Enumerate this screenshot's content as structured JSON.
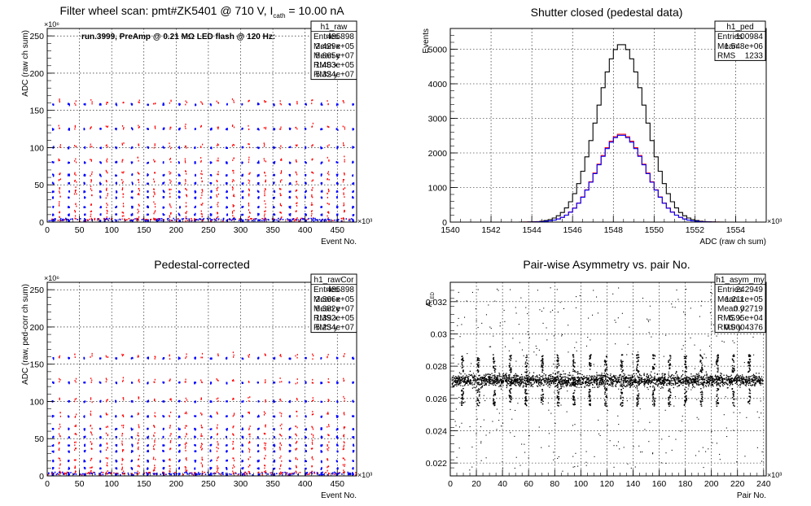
{
  "charts": [
    {
      "id": "raw",
      "chart_data": {
        "type": "scatter",
        "title": "Filter wheel scan: pmt#ZK5401 @   710 V, I",
        "title_sub": "cath",
        "title_tail": " = 10.00 nA",
        "annotation": "run.3999, PreAmp @ 0.21 MΩ LED flash @  120 Hz:",
        "xlabel": "Event No.",
        "ylabel": "ADC (raw ch sum)",
        "x_exponent": "×10³",
        "y_exponent": "×10⁶",
        "xlim": [
          0,
          480
        ],
        "ylim": [
          0,
          260
        ],
        "x_ticks": [
          0,
          50,
          100,
          150,
          200,
          250,
          300,
          350,
          400,
          450
        ],
        "y_ticks": [
          0,
          50,
          100,
          150,
          200,
          250
        ],
        "grid": true,
        "levels": [
          2,
          10,
          20,
          33,
          41,
          52,
          63,
          80,
          100,
          125,
          158
        ],
        "period_kevents": 24.5,
        "series_colors": [
          "#0000ff",
          "#ff0000"
        ],
        "stats": {
          "name": "h1_raw",
          "rows": [
            [
              "Entries",
              "485898"
            ],
            [
              "Mean x",
              "2.429e+05"
            ],
            [
              "Mean y",
              "5.865e+07"
            ],
            [
              "RMS x",
              "1.403e+05"
            ],
            [
              "RMS y",
              "5.324e+07"
            ]
          ]
        }
      }
    },
    {
      "id": "ped",
      "chart_data": {
        "type": "line",
        "title": "Shutter closed (pedestal data)",
        "xlabel": "ADC (raw ch sum)",
        "ylabel": "Events",
        "x_exponent": "×10³",
        "xlim": [
          1540,
          1555.5
        ],
        "ylim": [
          0,
          5600
        ],
        "x_ticks": [
          1540,
          1542,
          1544,
          1546,
          1548,
          1550,
          1552,
          1554
        ],
        "y_ticks": [
          0,
          1000,
          2000,
          3000,
          4000,
          5000
        ],
        "grid": true,
        "series": [
          {
            "color": "#000000",
            "peak_x": 1548.4,
            "peak_y": 5150,
            "sigma": 1.2
          },
          {
            "color": "#ff0000",
            "peak_x": 1548.4,
            "peak_y": 2550,
            "sigma": 1.2
          },
          {
            "color": "#0000ff",
            "peak_x": 1548.4,
            "peak_y": 2520,
            "sigma": 1.2
          }
        ],
        "stats": {
          "name": "h1_ped",
          "rows": [
            [
              "Entries",
              "100984"
            ],
            [
              "Mean",
              "1.548e+06"
            ],
            [
              "RMS",
              "1233"
            ]
          ]
        }
      }
    },
    {
      "id": "cor",
      "chart_data": {
        "type": "scatter",
        "title": "Pedestal-corrected",
        "xlabel": "Event No.",
        "ylabel": "ADC (raw, ped-corr ch sum)",
        "x_exponent": "×10³",
        "y_exponent": "×10⁶",
        "xlim": [
          0,
          480
        ],
        "ylim": [
          0,
          260
        ],
        "x_ticks": [
          0,
          50,
          100,
          150,
          200,
          250,
          300,
          350,
          400,
          450
        ],
        "y_ticks": [
          0,
          50,
          100,
          150,
          200,
          250
        ],
        "grid": true,
        "levels": [
          2,
          10,
          20,
          33,
          41,
          52,
          63,
          80,
          100,
          125,
          158
        ],
        "period_kevents": 24.5,
        "series_colors": [
          "#0000ff",
          "#ff0000"
        ],
        "stats": {
          "name": "h1_rawCor",
          "rows": [
            [
              "Entries",
              "485898"
            ],
            [
              "Mean x",
              "2.366e+05"
            ],
            [
              "Mean y",
              "6.382e+07"
            ],
            [
              "RMS x",
              "1.392e+05"
            ],
            [
              "RMS y",
              "5.234e+07"
            ]
          ]
        }
      }
    },
    {
      "id": "asym",
      "chart_data": {
        "type": "scatter",
        "title": "Pair-wise Asymmetry vs. pair No.",
        "xlabel": "Pair No.",
        "ylabel": "A",
        "ylabel_sub": "LED",
        "x_exponent": "×10³",
        "xlim": [
          0,
          242
        ],
        "ylim": [
          0.0212,
          0.0332
        ],
        "x_ticks": [
          0,
          20,
          40,
          60,
          80,
          100,
          120,
          140,
          160,
          180,
          200,
          220,
          240
        ],
        "y_ticks": [
          0.022,
          0.024,
          0.026,
          0.028,
          0.03,
          0.032
        ],
        "grid": true,
        "band_center": 0.02715,
        "band_halfwidth": 0.0005,
        "spike_spacing": 12.2,
        "series_colors": [
          "#000000"
        ],
        "stats": {
          "name": "h1_asym_my",
          "rows": [
            [
              "Entries",
              "242949"
            ],
            [
              "Mean x",
              "1.211e+05"
            ],
            [
              "Mean y",
              "0.02719"
            ],
            [
              "RMS x",
              "6.95e+04"
            ],
            [
              "RMS y",
              "0.0004376"
            ]
          ]
        }
      }
    }
  ]
}
